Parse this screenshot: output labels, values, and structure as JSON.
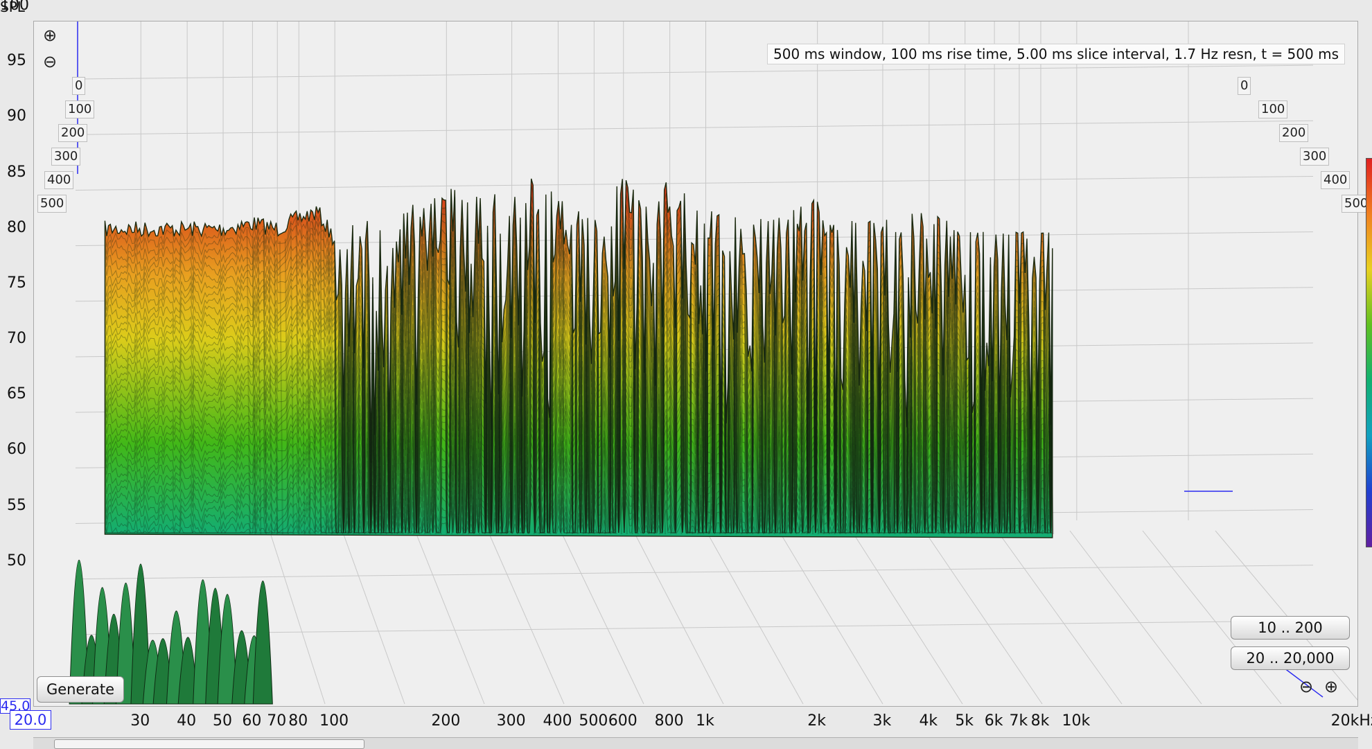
{
  "y_axis_title": "SPL",
  "x_unit_tick": "20kHz",
  "info_text": "500 ms window, 100 ms rise time, 5.00 ms slice interval, 1.7 Hz resn, t = 500 ms",
  "buttons": {
    "generate": "Generate",
    "range_a": "10 .. 200",
    "range_b": "20 .. 20,000"
  },
  "inputs": {
    "x_min": "20.0",
    "y_min": "45.0"
  },
  "icons": {
    "zoom_in": "zoom-in-icon",
    "zoom_out": "zoom-out-icon"
  },
  "chart_data": {
    "type": "waterfall",
    "title": "",
    "xlabel": "",
    "ylabel": "SPL",
    "x_scale": "log",
    "xlim": [
      20,
      20000
    ],
    "ylim": [
      45,
      103
    ],
    "x_ticks": [
      "30",
      "40",
      "50",
      "60",
      "70",
      "80",
      "100",
      "200",
      "300",
      "400",
      "500",
      "600",
      "800",
      "1k",
      "2k",
      "3k",
      "4k",
      "5k",
      "6k",
      "7k",
      "8k",
      "10k",
      "20kHz"
    ],
    "x_tick_values": [
      30,
      40,
      50,
      60,
      70,
      80,
      100,
      200,
      300,
      400,
      500,
      600,
      800,
      1000,
      2000,
      3000,
      4000,
      5000,
      6000,
      7000,
      8000,
      10000,
      20000
    ],
    "y_ticks": [
      100,
      95,
      90,
      85,
      80,
      75,
      70,
      65,
      60,
      55,
      50
    ],
    "time_ticks_ms": [
      "0",
      "100",
      "200",
      "300",
      "400",
      "500"
    ],
    "time_range_ms": [
      0,
      500
    ],
    "grid": true,
    "colormap": [
      "#e02020",
      "#f08020",
      "#e8d020",
      "#60c020",
      "#10b070",
      "#10a0c0",
      "#2040d0"
    ],
    "front_slice_peaks": {
      "x": [
        25,
        30,
        40,
        50,
        60,
        70,
        80,
        90,
        100,
        120,
        150,
        180,
        200,
        250,
        300,
        350,
        400,
        500,
        600,
        700,
        800,
        900,
        1000,
        1500,
        2000,
        2500,
        3000,
        4000,
        5000,
        6000,
        7000,
        8000
      ],
      "y": [
        86,
        86,
        86,
        86,
        86.5,
        86,
        87,
        87.5,
        85,
        86,
        87,
        88,
        89,
        88,
        89,
        90,
        88,
        86,
        90,
        87,
        90,
        88,
        87,
        86,
        88,
        86,
        86,
        87,
        85,
        85,
        85,
        85
      ]
    },
    "floor_db": 50
  }
}
